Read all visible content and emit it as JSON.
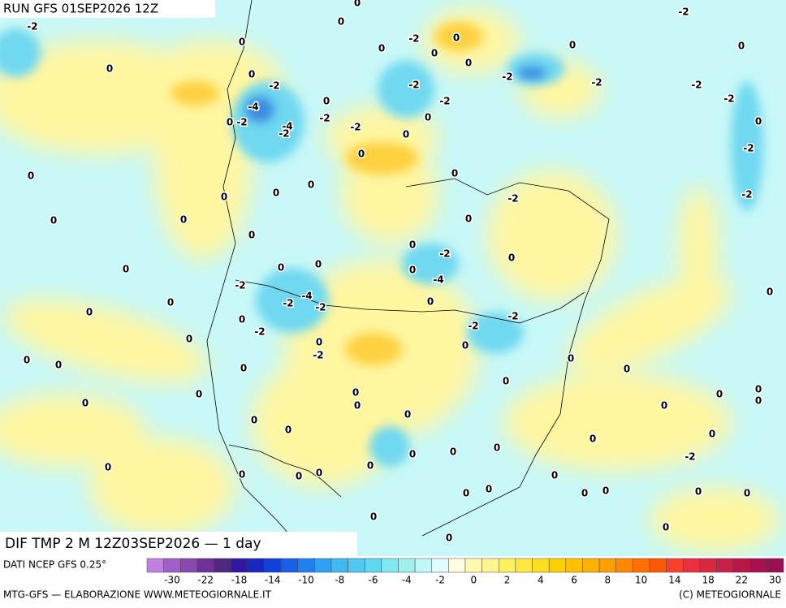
{
  "header": {
    "run": "RUN GFS 01SEP2026 12Z",
    "field": "DIF TMP 2 M 12Z03SEP2026 — 1 day",
    "source": "DATI NCEP GFS 0.25°",
    "credit_left": "MTG-GFS — ELABORAZIONE WWW.METEOGIORNALE.IT",
    "credit_right": "(C) METEOGIORNALE"
  },
  "colorbar": {
    "ticks": [
      -30,
      -22,
      -18,
      -14,
      -10,
      -8,
      -6,
      -4,
      -2,
      0,
      2,
      4,
      6,
      8,
      10,
      14,
      18,
      22,
      30
    ],
    "colors": [
      "#c080e0",
      "#a060c8",
      "#8848b0",
      "#703098",
      "#502880",
      "#3018a0",
      "#1828c0",
      "#1040d8",
      "#1860e8",
      "#2080f0",
      "#30a0f0",
      "#40b8f0",
      "#50c8f0",
      "#60d8f0",
      "#80e8f0",
      "#a0f0f0",
      "#c0f8f8",
      "#e0fcfc",
      "#fffce0",
      "#fff8b0",
      "#fff490",
      "#fff060",
      "#ffe840",
      "#ffe020",
      "#ffd000",
      "#ffc000",
      "#ffb000",
      "#ffa000",
      "#ff8800",
      "#ff7000",
      "#ff5800",
      "#f84030",
      "#e83040",
      "#d82840",
      "#c82048",
      "#b81848",
      "#a81050",
      "#981050"
    ]
  },
  "contour_labels": [
    -2,
    0,
    -2,
    0,
    0,
    0,
    0,
    0,
    0,
    -2,
    -2,
    0,
    -2,
    -2,
    -2,
    0,
    0,
    -2,
    -2,
    0,
    0,
    0,
    -2,
    -4,
    0,
    -2,
    -4,
    -2,
    0,
    -2,
    -2,
    -2,
    -2,
    0,
    0,
    0,
    0,
    0,
    0,
    0,
    0,
    -2,
    0,
    0,
    0,
    0,
    -2,
    -4,
    0,
    0,
    0,
    0,
    0,
    0,
    -2,
    -4,
    -2,
    -2,
    0,
    0,
    0,
    -2,
    -2,
    0,
    -2,
    0,
    0,
    -2,
    0,
    0,
    0,
    0,
    0,
    0,
    0,
    0,
    0,
    0,
    0,
    0,
    0,
    0,
    0,
    0,
    0,
    0,
    0,
    0,
    0,
    0,
    0,
    -2,
    0,
    0,
    0,
    0,
    0,
    0,
    0,
    0,
    0,
    0,
    0,
    0,
    0,
    0,
    0,
    0
  ]
}
